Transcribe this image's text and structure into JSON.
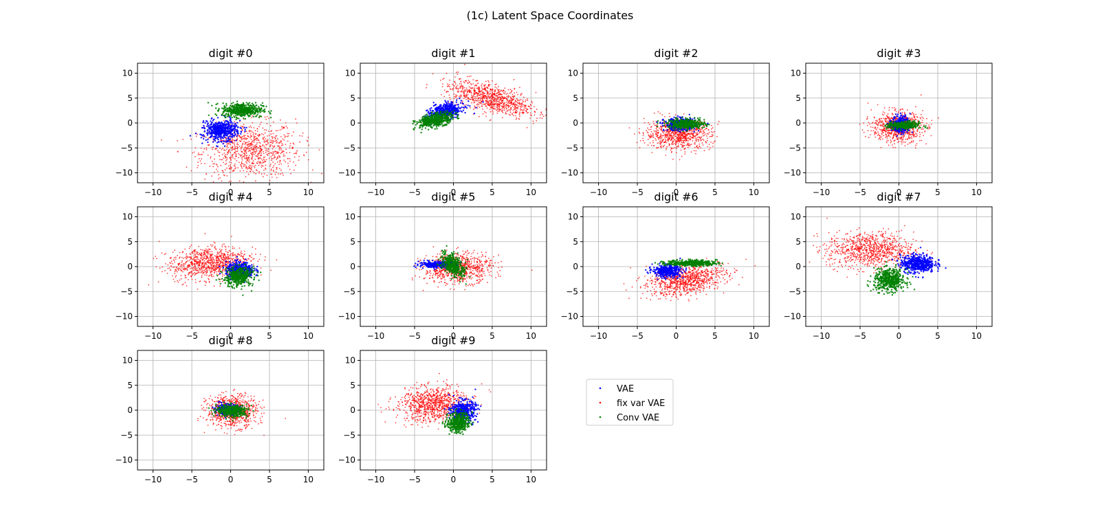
{
  "figure": {
    "title": "(1c) Latent Space Coordinates"
  },
  "colors": {
    "VAE": "#0000ff",
    "fix var VAE": "#ff0000",
    "Conv VAE": "#008000",
    "grid": "#b0b0b0"
  },
  "chart_data": {
    "type": "scatter",
    "title": "(1c) Latent Space Coordinates",
    "xlim": [
      -12,
      12
    ],
    "ylim": [
      -12,
      12
    ],
    "xticks": [
      -10,
      -5,
      0,
      5,
      10
    ],
    "yticks": [
      10,
      5,
      0,
      -5,
      -10
    ],
    "grid": true,
    "legend": {
      "entries": [
        "VAE",
        "fix var VAE",
        "Conv VAE"
      ],
      "placement": "lower-right empty cell"
    },
    "series_names": [
      "VAE",
      "fix var VAE",
      "Conv VAE"
    ],
    "panels": [
      {
        "title": "digit #0",
        "clusters": [
          {
            "series": "fix var VAE",
            "cx": 2.5,
            "cy": -5.5,
            "sx": 3.2,
            "sy": 2.8,
            "rot": 0.1,
            "n": 900
          },
          {
            "series": "VAE",
            "cx": -1.2,
            "cy": -1.5,
            "sx": 1.1,
            "sy": 1.0,
            "rot": 0.3,
            "n": 500
          },
          {
            "series": "Conv VAE",
            "cx": 1.5,
            "cy": 2.6,
            "sx": 1.3,
            "sy": 0.7,
            "rot": 0.0,
            "n": 500
          }
        ]
      },
      {
        "title": "digit #1",
        "clusters": [
          {
            "series": "fix var VAE",
            "cx": 4.8,
            "cy": 5.0,
            "sx": 3.0,
            "sy": 1.3,
            "rot": -0.45,
            "n": 900
          },
          {
            "series": "VAE",
            "cx": -1.0,
            "cy": 2.3,
            "sx": 1.2,
            "sy": 0.7,
            "rot": 0.5,
            "n": 500
          },
          {
            "series": "Conv VAE",
            "cx": -2.3,
            "cy": 0.6,
            "sx": 1.2,
            "sy": 0.6,
            "rot": 0.4,
            "n": 500
          }
        ]
      },
      {
        "title": "digit #2",
        "clusters": [
          {
            "series": "fix var VAE",
            "cx": 0.3,
            "cy": -2.3,
            "sx": 2.1,
            "sy": 1.5,
            "rot": 0.0,
            "n": 800
          },
          {
            "series": "VAE",
            "cx": 0.5,
            "cy": -0.3,
            "sx": 1.0,
            "sy": 0.6,
            "rot": 0.0,
            "n": 400
          },
          {
            "series": "Conv VAE",
            "cx": 1.3,
            "cy": -0.2,
            "sx": 1.2,
            "sy": 0.5,
            "rot": 0.0,
            "n": 400
          }
        ]
      },
      {
        "title": "digit #3",
        "clusters": [
          {
            "series": "fix var VAE",
            "cx": -0.2,
            "cy": -0.8,
            "sx": 1.6,
            "sy": 1.5,
            "rot": 0.0,
            "n": 800
          },
          {
            "series": "VAE",
            "cx": 0.3,
            "cy": -0.3,
            "sx": 0.6,
            "sy": 0.9,
            "rot": 0.0,
            "n": 300
          },
          {
            "series": "Conv VAE",
            "cx": 0.6,
            "cy": -0.5,
            "sx": 1.0,
            "sy": 0.4,
            "rot": 0.0,
            "n": 300
          }
        ]
      },
      {
        "title": "digit #4",
        "clusters": [
          {
            "series": "fix var VAE",
            "cx": -2.8,
            "cy": 0.8,
            "sx": 2.6,
            "sy": 1.6,
            "rot": 0.25,
            "n": 900
          },
          {
            "series": "VAE",
            "cx": 1.2,
            "cy": -0.7,
            "sx": 0.9,
            "sy": 0.8,
            "rot": 0.0,
            "n": 400
          },
          {
            "series": "Conv VAE",
            "cx": 1.0,
            "cy": -2.0,
            "sx": 0.9,
            "sy": 1.0,
            "rot": -0.5,
            "n": 400
          }
        ]
      },
      {
        "title": "digit #5",
        "clusters": [
          {
            "series": "fix var VAE",
            "cx": 0.6,
            "cy": -0.3,
            "sx": 2.2,
            "sy": 1.5,
            "rot": 0.1,
            "n": 800
          },
          {
            "series": "VAE",
            "cx": -2.0,
            "cy": 0.4,
            "sx": 1.2,
            "sy": 0.3,
            "rot": 0.0,
            "n": 350
          },
          {
            "series": "Conv VAE",
            "cx": 0.0,
            "cy": 0.2,
            "sx": 0.6,
            "sy": 1.2,
            "rot": 0.4,
            "n": 400
          }
        ]
      },
      {
        "title": "digit #6",
        "clusters": [
          {
            "series": "fix var VAE",
            "cx": 1.3,
            "cy": -2.7,
            "sx": 2.6,
            "sy": 1.4,
            "rot": 0.3,
            "n": 900
          },
          {
            "series": "VAE",
            "cx": -1.2,
            "cy": -0.9,
            "sx": 0.9,
            "sy": 0.6,
            "rot": 0.0,
            "n": 400
          },
          {
            "series": "Conv VAE",
            "cx": 2.0,
            "cy": 0.7,
            "sx": 1.6,
            "sy": 0.3,
            "rot": 0.0,
            "n": 400
          }
        ]
      },
      {
        "title": "digit #7",
        "clusters": [
          {
            "series": "fix var VAE",
            "cx": -3.7,
            "cy": 3.3,
            "sx": 2.8,
            "sy": 1.8,
            "rot": 0.0,
            "n": 900
          },
          {
            "series": "VAE",
            "cx": 2.4,
            "cy": 0.6,
            "sx": 1.1,
            "sy": 0.9,
            "rot": 0.0,
            "n": 500
          },
          {
            "series": "Conv VAE",
            "cx": -1.2,
            "cy": -2.7,
            "sx": 1.0,
            "sy": 1.1,
            "rot": 0.0,
            "n": 500
          }
        ]
      },
      {
        "title": "digit #8",
        "clusters": [
          {
            "series": "fix var VAE",
            "cx": 0.2,
            "cy": -0.2,
            "sx": 1.6,
            "sy": 1.6,
            "rot": 0.0,
            "n": 800
          },
          {
            "series": "VAE",
            "cx": -0.4,
            "cy": 0.2,
            "sx": 0.8,
            "sy": 0.5,
            "rot": 0.0,
            "n": 300
          },
          {
            "series": "Conv VAE",
            "cx": 0.2,
            "cy": -0.1,
            "sx": 1.0,
            "sy": 0.6,
            "rot": 0.0,
            "n": 400
          }
        ]
      },
      {
        "title": "digit #9",
        "clusters": [
          {
            "series": "fix var VAE",
            "cx": -2.7,
            "cy": 1.2,
            "sx": 2.2,
            "sy": 1.7,
            "rot": 0.3,
            "n": 900
          },
          {
            "series": "VAE",
            "cx": 1.3,
            "cy": -0.1,
            "sx": 0.8,
            "sy": 1.0,
            "rot": 0.0,
            "n": 400
          },
          {
            "series": "Conv VAE",
            "cx": 0.6,
            "cy": -2.4,
            "sx": 0.7,
            "sy": 1.0,
            "rot": -0.2,
            "n": 400
          }
        ]
      }
    ]
  }
}
